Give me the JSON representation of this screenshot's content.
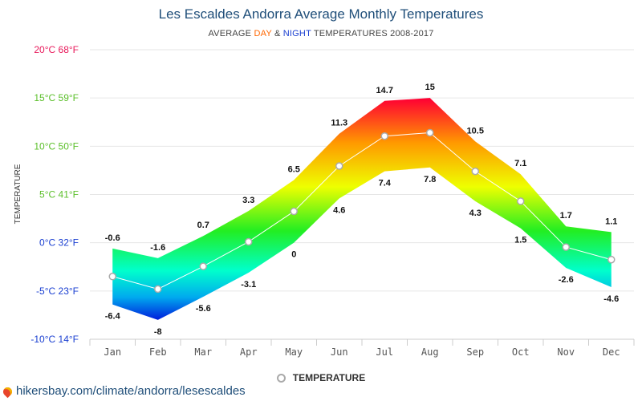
{
  "header": {
    "title": "Les Escaldes Andorra Average Monthly Temperatures",
    "subtitle_prefix": "AVERAGE",
    "subtitle_day": "DAY",
    "subtitle_amp": "&",
    "subtitle_night": "NIGHT",
    "subtitle_suffix": "TEMPERATURES 2008-2017"
  },
  "footer": {
    "link": "hikersbay.com/climate/andorra/lesescaldes"
  },
  "legend": {
    "label": "TEMPERATURE"
  },
  "colors": {
    "title": "#1f4e79",
    "day_word": "#ff6600",
    "night_word": "#1a3fd1",
    "grid": "#e6e6e6",
    "avg_line": "#ffffff",
    "marker_stroke": "#aaaaaa"
  },
  "chart_data": {
    "type": "area",
    "subtype": "range-band with average line",
    "categories": [
      "Jan",
      "Feb",
      "Mar",
      "Apr",
      "May",
      "Jun",
      "Jul",
      "Aug",
      "Sep",
      "Oct",
      "Nov",
      "Dec"
    ],
    "series": [
      {
        "name": "Day",
        "values": [
          -0.6,
          -1.6,
          0.7,
          3.3,
          6.5,
          11.3,
          14.7,
          15,
          10.5,
          7.1,
          1.7,
          1.1
        ]
      },
      {
        "name": "Night",
        "values": [
          -6.4,
          -8,
          -5.6,
          -3.1,
          0,
          4.6,
          7.4,
          7.8,
          4.3,
          1.5,
          -2.6,
          -4.6
        ]
      },
      {
        "name": "TEMPERATURE",
        "values": [
          -3.5,
          -4.8,
          -2.45,
          0.1,
          3.25,
          7.95,
          11.05,
          11.4,
          7.4,
          4.3,
          -0.45,
          -1.75
        ]
      }
    ],
    "ylabel": "TEMPERATURE",
    "ylim": [
      -10,
      20
    ],
    "yticks": [
      {
        "value": 20,
        "label": "20°C 68°F",
        "color": "#e8185a"
      },
      {
        "value": 15,
        "label": "15°C 59°F",
        "color": "#5bbf2a"
      },
      {
        "value": 10,
        "label": "10°C 50°F",
        "color": "#5bbf2a"
      },
      {
        "value": 5,
        "label": "5°C 41°F",
        "color": "#5bbf2a"
      },
      {
        "value": 0,
        "label": "0°C 32°F",
        "color": "#1a3fd1"
      },
      {
        "value": -5,
        "label": "-5°C 23°F",
        "color": "#1a3fd1"
      },
      {
        "value": -10,
        "label": "-10°C 14°F",
        "color": "#1a3fd1"
      }
    ],
    "day_labels": [
      "-0.6",
      "-1.6",
      "0.7",
      "3.3",
      "6.5",
      "11.3",
      "14.7",
      "15",
      "10.5",
      "7.1",
      "1.7",
      "1.1"
    ],
    "night_labels": [
      "-6.4",
      "-8",
      "-5.6",
      "-3.1",
      "0",
      "4.6",
      "7.4",
      "7.8",
      "4.3",
      "1.5",
      "-2.6",
      "-4.6"
    ],
    "grid": true,
    "legend_position": "bottom"
  }
}
